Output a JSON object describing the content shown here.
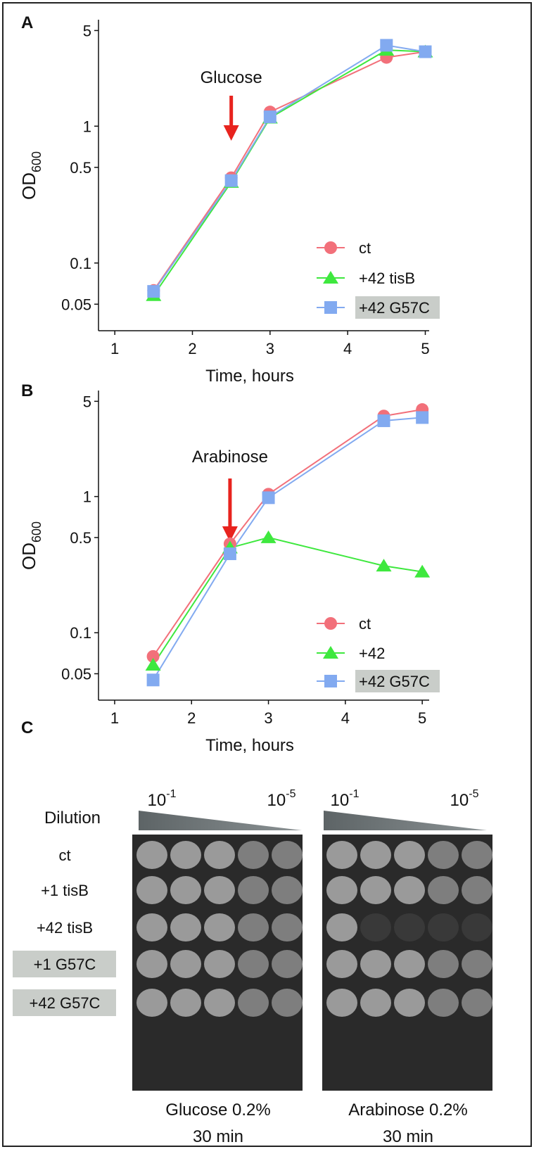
{
  "chart_data": [
    {
      "type": "line",
      "panel": "A",
      "x_label": "Time, hours",
      "y_label": {
        "main": "OD",
        "sub": "600"
      },
      "log_y": true,
      "annotation": {
        "text": "Glucose",
        "x": 2.5,
        "color": "#e8231e"
      },
      "xlim": [
        0.79,
        5.05
      ],
      "xticks": [
        1,
        2,
        3,
        4,
        5
      ],
      "ylim": [
        0.032,
        6
      ],
      "yticks": [
        0.05,
        0.1,
        0.5,
        1,
        5
      ],
      "x": [
        1.5,
        2.5,
        3,
        4.5,
        5
      ],
      "series": [
        {
          "name": "ct",
          "color": "#f2707a",
          "marker": "circle",
          "values": [
            0.063,
            0.42,
            1.27,
            3.18,
            3.5
          ]
        },
        {
          "name": "+42 tisB",
          "color": "#3ee83e",
          "marker": "triangle",
          "values": [
            0.058,
            0.39,
            1.15,
            3.6,
            3.5
          ]
        },
        {
          "name": "+42 G57C",
          "color": "#82aaf0",
          "marker": "square",
          "highlight": true,
          "values": [
            0.062,
            0.4,
            1.17,
            3.9,
            3.5
          ]
        }
      ]
    },
    {
      "type": "line",
      "panel": "B",
      "x_label": "Time, hours",
      "y_label": {
        "main": "OD",
        "sub": "600"
      },
      "log_y": true,
      "annotation": {
        "text": "Arabinose",
        "x": 2.5,
        "color": "#e8231e"
      },
      "xlim": [
        0.79,
        5.09
      ],
      "xticks": [
        1,
        2,
        3,
        4,
        5
      ],
      "ylim": [
        0.032,
        6
      ],
      "yticks": [
        0.05,
        0.1,
        0.5,
        1,
        5
      ],
      "x": [
        1.5,
        2.5,
        3,
        4.5,
        5
      ],
      "series": [
        {
          "name": "ct",
          "color": "#f2707a",
          "marker": "circle",
          "values": [
            0.067,
            0.45,
            1.04,
            3.9,
            4.35
          ]
        },
        {
          "name": "+42",
          "color": "#3ee83e",
          "marker": "triangle",
          "values": [
            0.058,
            0.42,
            0.5,
            0.31,
            0.28
          ]
        },
        {
          "name": "+42 G57C",
          "color": "#82aaf0",
          "marker": "square",
          "highlight": true,
          "values": [
            0.045,
            0.38,
            0.98,
            3.6,
            3.8
          ]
        }
      ]
    }
  ],
  "panel_c": {
    "label": "C",
    "dilution": "Dilution",
    "exponents": [
      {
        "base": "10",
        "exp": "-1"
      },
      {
        "base": "10",
        "exp": "-5"
      },
      {
        "base": "10",
        "exp": "-1"
      },
      {
        "base": "10",
        "exp": "-5"
      }
    ],
    "rows": [
      "ct",
      "+1 tisB",
      "+42 tisB",
      "+1 G57C",
      "+42 G57C"
    ],
    "captions": [
      [
        "Glucose 0.2%",
        "30 min"
      ],
      [
        "Arabinose 0.2%",
        "30 min"
      ]
    ]
  }
}
